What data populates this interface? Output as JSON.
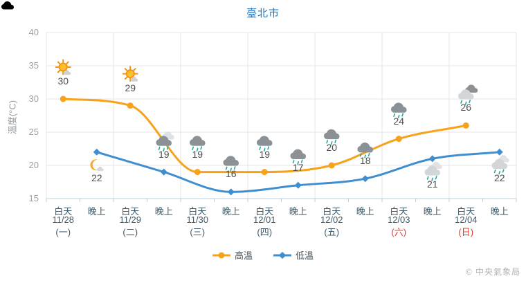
{
  "title": "臺北市",
  "y_axis": {
    "label": "溫度(°C)",
    "ticks": [
      40,
      35,
      30,
      25,
      20,
      15
    ]
  },
  "x_axis": {
    "daypart_day": "白天",
    "daypart_night": "晚上",
    "days": [
      {
        "date": "11/28",
        "weekday": "(一)",
        "is_holiday": false
      },
      {
        "date": "11/29",
        "weekday": "(二)",
        "is_holiday": false
      },
      {
        "date": "11/30",
        "weekday": "(三)",
        "is_holiday": false
      },
      {
        "date": "12/01",
        "weekday": "(四)",
        "is_holiday": false
      },
      {
        "date": "12/02",
        "weekday": "(五)",
        "is_holiday": false
      },
      {
        "date": "12/03",
        "weekday": "(六)",
        "is_holiday": true
      },
      {
        "date": "12/04",
        "weekday": "(日)",
        "is_holiday": true
      }
    ]
  },
  "chart_data": {
    "type": "line",
    "title": "臺北市",
    "ylabel": "溫度(°C)",
    "ylim": [
      15,
      40
    ],
    "grid": true,
    "legend_position": "bottom",
    "categories": [
      "白天 11/28",
      "晚上 11/28",
      "白天 11/29",
      "晚上 11/29",
      "白天 11/30",
      "晚上 11/30",
      "白天 12/01",
      "晚上 12/01",
      "白天 12/02",
      "晚上 12/02",
      "白天 12/03",
      "晚上 12/03",
      "白天 12/04",
      "晚上 12/04"
    ],
    "series": [
      {
        "name": "高溫",
        "color": "#f7a219",
        "marker": "circle",
        "points": [
          {
            "category_index": 0,
            "value": 30,
            "icon": "sun-cloud-icon",
            "label_pos": "above"
          },
          {
            "category_index": 2,
            "value": 29,
            "icon": "sun-cloud-icon",
            "label_pos": "above"
          },
          {
            "category_index": 4,
            "value": 19,
            "icon": "rain-cloud-dark-icon",
            "label_pos": "above"
          },
          {
            "category_index": 6,
            "value": 19,
            "icon": "rain-cloud-dark-icon",
            "label_pos": "above"
          },
          {
            "category_index": 8,
            "value": 20,
            "icon": "rain-cloud-dark-icon",
            "label_pos": "above"
          },
          {
            "category_index": 10,
            "value": 24,
            "icon": "rain-cloud-dark-icon",
            "label_pos": "above"
          },
          {
            "category_index": 12,
            "value": 26,
            "icon": "rain-cloud-light-darkback-icon",
            "label_pos": "above"
          }
        ]
      },
      {
        "name": "低溫",
        "color": "#3e8ed0",
        "marker": "diamond",
        "points": [
          {
            "category_index": 1,
            "value": 22,
            "icon": "moon-cloud-icon",
            "label_pos": "below"
          },
          {
            "category_index": 3,
            "value": 19,
            "icon": "rain-cloud-dark-lightback-icon",
            "label_pos": "above"
          },
          {
            "category_index": 5,
            "value": 16,
            "icon": "rain-cloud-dark-icon",
            "label_pos": "above"
          },
          {
            "category_index": 7,
            "value": 17,
            "icon": "rain-cloud-dark-icon",
            "label_pos": "above"
          },
          {
            "category_index": 9,
            "value": 18,
            "icon": "rain-cloud-dark-icon",
            "label_pos": "above"
          },
          {
            "category_index": 11,
            "value": 21,
            "icon": "rain-cloud-light-icon",
            "label_pos": "below"
          },
          {
            "category_index": 13,
            "value": 22,
            "icon": "rain-cloud-light-icon",
            "label_pos": "below"
          }
        ]
      }
    ]
  },
  "legend": [
    {
      "label": "高溫",
      "color": "#f7a219",
      "marker": "circle"
    },
    {
      "label": "低溫",
      "color": "#3e8ed0",
      "marker": "diamond"
    }
  ],
  "copyright": "© 中央氣象局",
  "colors": {
    "title": "#1b79c9",
    "grid": "#e4e4e4",
    "axis": "#b9cfdc",
    "tick_label": "#9aa0a6",
    "value_label": "#4d4d4d",
    "xlabel": "#3d5866",
    "holiday_red": "#e0382e",
    "legend_text": "#46525a",
    "copyright": "#b3b3b3",
    "rain_drop": "#2aa79e",
    "cloud_dark": "#8c9196",
    "cloud_light": "#d3d6d9",
    "cloud_lighter": "#e0e2e4",
    "sun_fill": "#fdc02c",
    "sun_stroke": "#f2920f",
    "moon": "#f7ab25"
  }
}
